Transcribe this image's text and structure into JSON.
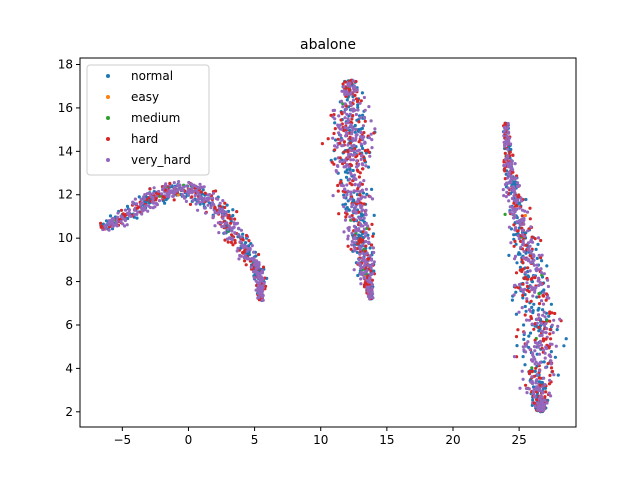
{
  "chart_data": {
    "type": "scatter",
    "title": "abalone",
    "xlabel": "",
    "ylabel": "",
    "xlim": [
      -8.2,
      29.3
    ],
    "ylim": [
      1.3,
      18.3
    ],
    "xticks": [
      -5,
      0,
      5,
      10,
      15,
      20,
      25
    ],
    "xtick_labels": [
      "−5",
      "0",
      "5",
      "10",
      "15",
      "20",
      "25"
    ],
    "yticks": [
      2,
      4,
      6,
      8,
      10,
      12,
      14,
      16,
      18
    ],
    "ytick_labels": [
      "2",
      "4",
      "6",
      "8",
      "10",
      "12",
      "14",
      "16",
      "18"
    ],
    "grid": false,
    "legend_position": "top-left",
    "series": [
      {
        "name": "normal",
        "color": "#1f77b4"
      },
      {
        "name": "easy",
        "color": "#ff7f0e"
      },
      {
        "name": "medium",
        "color": "#2ca02c"
      },
      {
        "name": "hard",
        "color": "#d62728"
      },
      {
        "name": "very_hard",
        "color": "#9467bd"
      }
    ],
    "clusters": [
      {
        "shape": "crescent",
        "spine": [
          [
            -6.6,
            10.5
          ],
          [
            -5,
            10.9
          ],
          [
            -3.5,
            11.6
          ],
          [
            -2,
            12.1
          ],
          [
            -0.5,
            12.3
          ],
          [
            1,
            12.0
          ],
          [
            2.5,
            11.2
          ],
          [
            3.5,
            10.1
          ],
          [
            4.5,
            9.2
          ],
          [
            5.4,
            8.3
          ],
          [
            5.5,
            7.1
          ]
        ],
        "half_width": [
          0.25,
          0.5,
          0.6,
          0.55,
          0.55,
          0.75,
          0.8,
          0.7,
          0.55,
          0.45,
          0.15
        ],
        "counts": {
          "normal": 260,
          "easy": 2,
          "medium": 10,
          "hard": 170,
          "very_hard": 360
        }
      },
      {
        "shape": "vertical",
        "spine": [
          [
            12.2,
            17.3
          ],
          [
            12.3,
            16.3
          ],
          [
            12.3,
            15.0
          ],
          [
            12.2,
            13.8
          ],
          [
            12.4,
            12.6
          ],
          [
            12.6,
            11.5
          ],
          [
            12.9,
            10.3
          ],
          [
            13.2,
            9.3
          ],
          [
            13.5,
            8.3
          ],
          [
            13.8,
            7.2
          ]
        ],
        "half_width": [
          0.3,
          1.1,
          1.4,
          1.4,
          1.3,
          1.0,
          0.9,
          0.7,
          0.5,
          0.2
        ],
        "counts": {
          "normal": 240,
          "easy": 2,
          "medium": 10,
          "hard": 200,
          "very_hard": 350
        }
      },
      {
        "shape": "diagonal",
        "spine": [
          [
            24.0,
            15.3
          ],
          [
            24.2,
            13.5
          ],
          [
            24.7,
            11.8
          ],
          [
            25.3,
            10.0
          ],
          [
            25.8,
            8.3
          ],
          [
            26.4,
            6.7
          ],
          [
            26.6,
            5.2
          ],
          [
            26.4,
            3.7
          ],
          [
            26.5,
            2.5
          ],
          [
            26.7,
            2.0
          ]
        ],
        "half_width": [
          0.15,
          0.4,
          0.7,
          0.9,
          1.2,
          1.4,
          1.4,
          1.2,
          0.7,
          0.2
        ],
        "counts": {
          "normal": 300,
          "easy": 2,
          "medium": 15,
          "hard": 230,
          "very_hard": 380
        }
      }
    ]
  }
}
